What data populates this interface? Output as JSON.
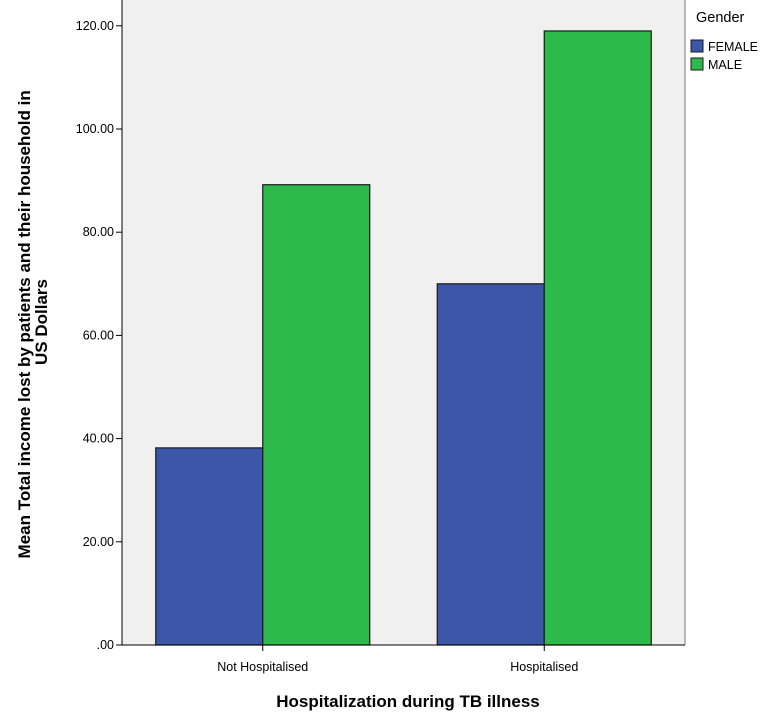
{
  "chart_data": {
    "type": "bar",
    "categories": [
      "Not Hospitalised",
      "Hospitalised"
    ],
    "series": [
      {
        "name": "FEMALE",
        "values": [
          38.2,
          70.0
        ],
        "color": "#3c56a8"
      },
      {
        "name": "MALE",
        "values": [
          89.2,
          119.0
        ],
        "color": "#2eb94b"
      }
    ],
    "xlabel": "Hospitalization during TB illness",
    "ylabel_lines": [
      "Mean Total income lost by patients and their household in",
      "US Dollars"
    ],
    "ylim": [
      0,
      125
    ],
    "yticks": [
      {
        "value": 0,
        "label": ".00"
      },
      {
        "value": 20,
        "label": "20.00"
      },
      {
        "value": 40,
        "label": "40.00"
      },
      {
        "value": 60,
        "label": "60.00"
      },
      {
        "value": 80,
        "label": "80.00"
      },
      {
        "value": 100,
        "label": "100.00"
      },
      {
        "value": 120,
        "label": "120.00"
      }
    ],
    "legend": {
      "title": "Gender",
      "position": "top-right"
    },
    "plot_background": "#f0f0f0",
    "grid": false
  }
}
